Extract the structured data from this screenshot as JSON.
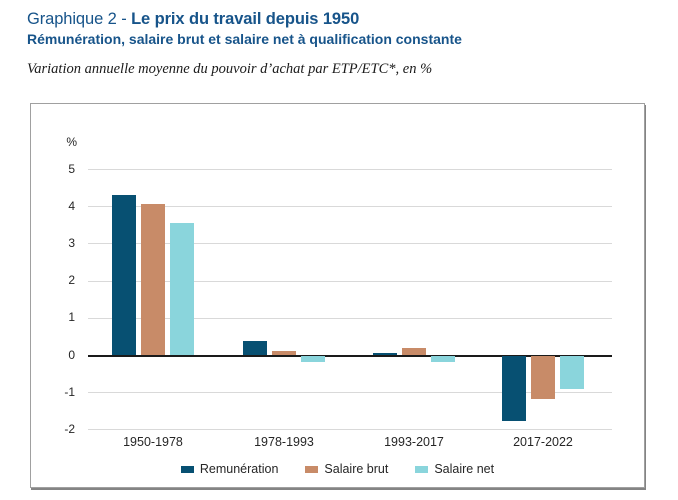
{
  "header": {
    "title_prefix": "Graphique 2 - ",
    "title_bold": "Le prix du travail depuis 1950",
    "subtitle": "Rémunération, salaire brut et salaire net à qualification constante",
    "note": "Variation annuelle moyenne du pouvoir d’achat par ETP/ETC*, en %"
  },
  "colors": {
    "title_blue": "#17548a",
    "gridline": "#d9d9d9",
    "zero_line": "#1a1a1a",
    "panel_border": "#a0a0a0",
    "tick_text": "#262626"
  },
  "chart_data": {
    "type": "bar",
    "title": "Le prix du travail depuis 1950",
    "unit_label": "%",
    "categories": [
      "1950-1978",
      "1978-1993",
      "1993-2017",
      "2017-2022"
    ],
    "series": [
      {
        "name": "Remunération",
        "color": "#075072",
        "values": [
          4.3,
          0.37,
          0.06,
          -1.75
        ]
      },
      {
        "name": "Salaire brut",
        "color": "#c88b68",
        "values": [
          4.05,
          0.1,
          0.18,
          -1.15
        ]
      },
      {
        "name": "Salaire net",
        "color": "#8ad5dc",
        "values": [
          3.55,
          -0.16,
          -0.15,
          -0.9
        ]
      }
    ],
    "y_ticks": [
      5,
      4,
      3,
      2,
      1,
      0,
      -1,
      -2
    ],
    "ylim": [
      -2.3,
      5.5
    ],
    "grid": true,
    "legend_position": "bottom"
  }
}
